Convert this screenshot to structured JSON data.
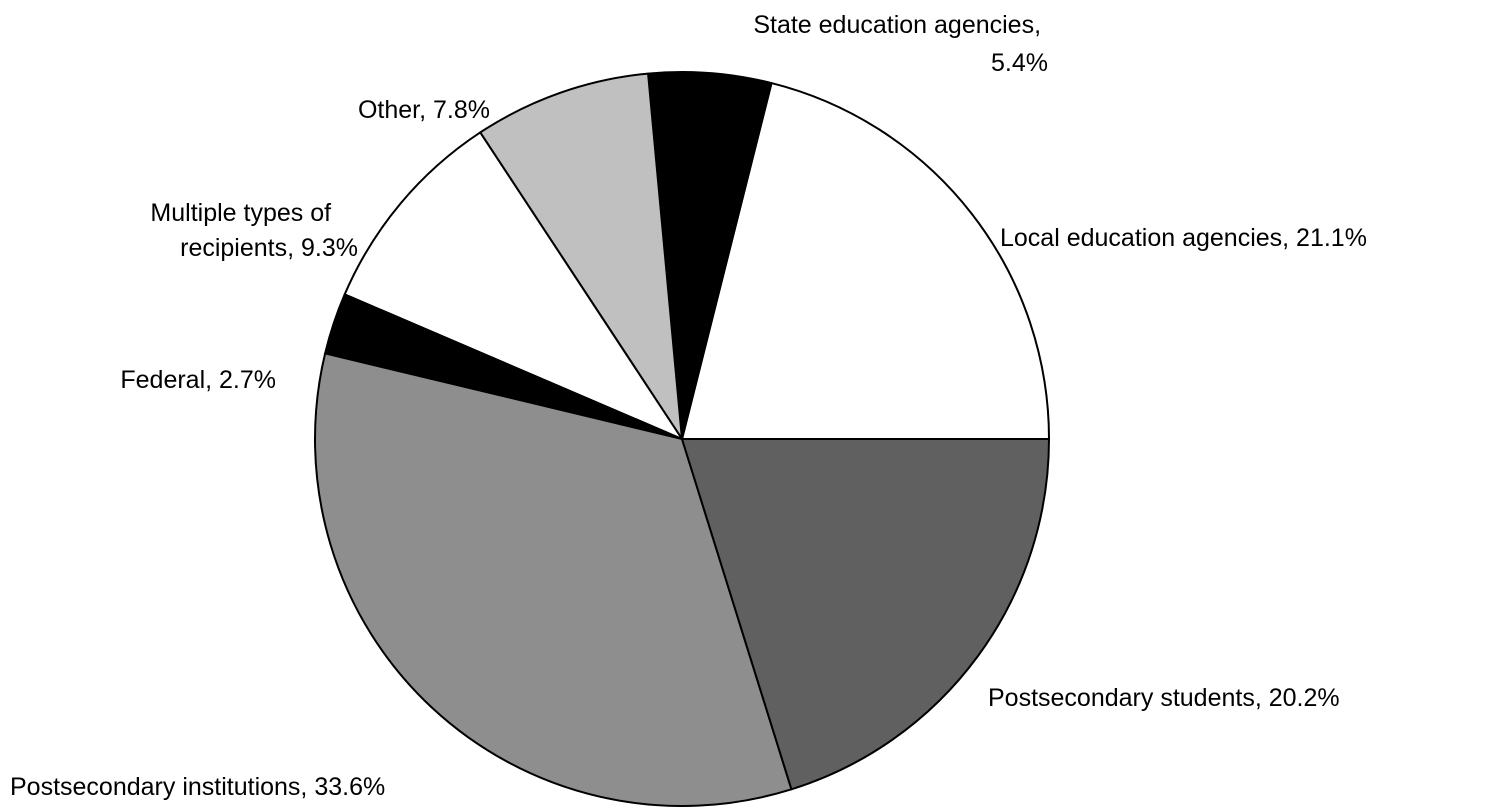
{
  "chart_data": {
    "type": "pie",
    "start_angle_deg": 0,
    "direction": "counterclockwise",
    "slices": [
      {
        "name": "Local education agencies",
        "value": 21.1,
        "color": "#ffffff",
        "label": [
          "Local education agencies,  21.1%"
        ]
      },
      {
        "name": "State education agencies",
        "value": 5.4,
        "color": "#000000",
        "label": [
          "State education agencies,",
          "5.4%"
        ]
      },
      {
        "name": "Other",
        "value": 7.8,
        "color": "#c0c0c0",
        "label": [
          "Other,  7.8%"
        ]
      },
      {
        "name": "Multiple types of recipients",
        "value": 9.3,
        "color": "#ffffff",
        "label": [
          "Multiple types of",
          "recipients,  9.3%"
        ]
      },
      {
        "name": "Federal",
        "value": 2.7,
        "color": "#000000",
        "label": [
          "Federal,  2.7%"
        ]
      },
      {
        "name": "Postsecondary institutions",
        "value": 33.6,
        "color": "#8e8e8e",
        "label": [
          "Postsecondary institutions,  33.6%"
        ]
      },
      {
        "name": "Postsecondary students",
        "value": 20.2,
        "color": "#606060",
        "label": [
          "Postsecondary students,  20.2%"
        ]
      }
    ]
  }
}
